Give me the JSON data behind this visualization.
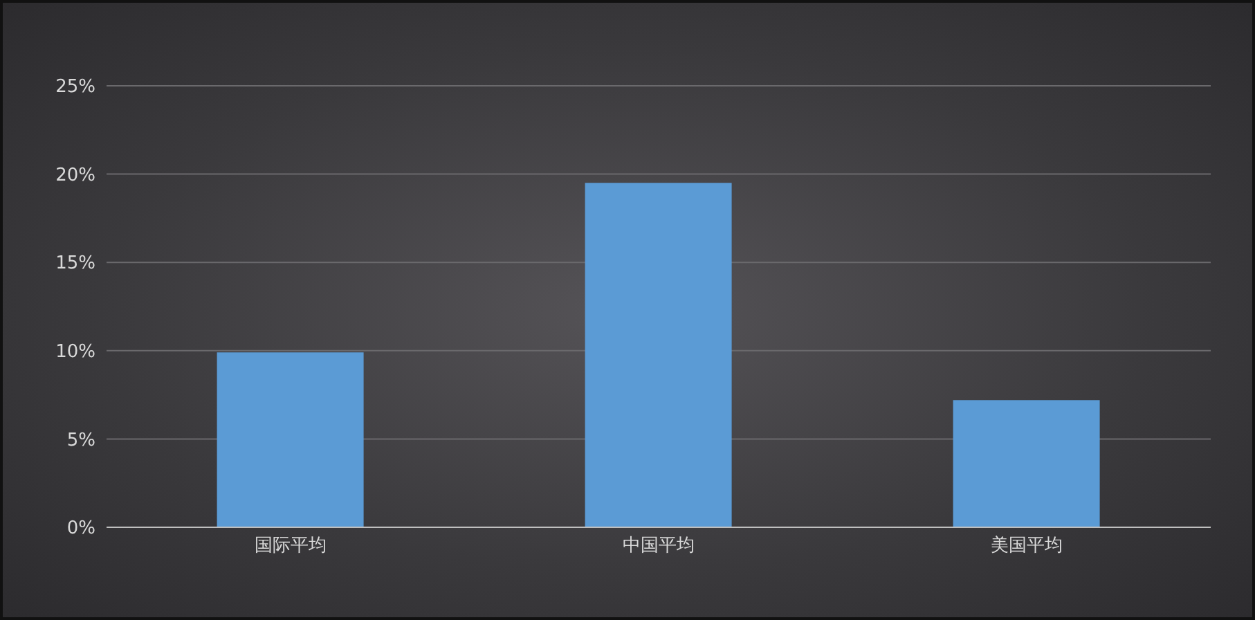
{
  "chart_data": {
    "type": "bar",
    "categories": [
      "国际平均",
      "中国平均",
      "美国平均"
    ],
    "values": [
      9.9,
      19.5,
      7.2
    ],
    "color": "#5b9bd5",
    "ylim": [
      0,
      25
    ],
    "yticks": [
      {
        "value": 0,
        "label": "0%"
      },
      {
        "value": 5,
        "label": "5%"
      },
      {
        "value": 10,
        "label": "10%"
      },
      {
        "value": 15,
        "label": "15%"
      },
      {
        "value": 20,
        "label": "20%"
      },
      {
        "value": 25,
        "label": "25%"
      }
    ],
    "grid": "y"
  }
}
